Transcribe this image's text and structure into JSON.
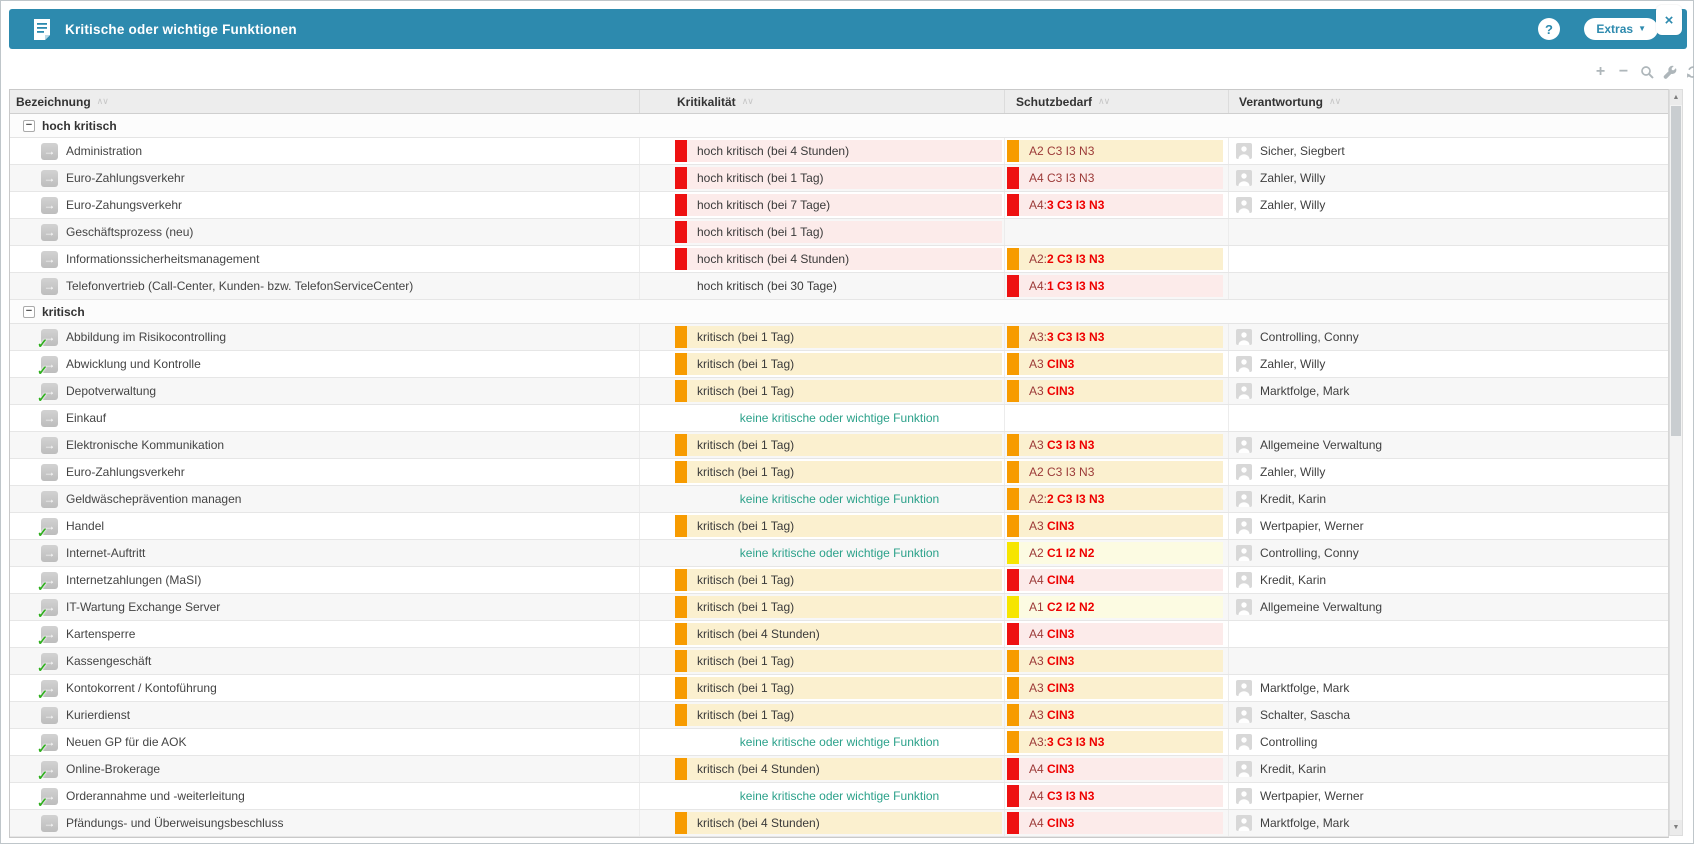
{
  "colors": {
    "accent_blue": "#2d8aae",
    "bar_red": "#ee1111",
    "bar_orange": "#f79b00",
    "bar_yellow": "#f6e500",
    "teal_text": "#2ba18a",
    "dark_red_text": "#9c3a38",
    "bold_red_text": "#ee0000"
  },
  "glyphs": {
    "arrow": "→",
    "check": "✓",
    "collapse": "−",
    "sort": "∧∨",
    "caret": "▼",
    "up": "▲",
    "down": "▼",
    "close": "×",
    "help": "?",
    "plus": "+",
    "minus": "−"
  },
  "header": {
    "title": "Kritische oder wichtige Funktionen",
    "help_label": "?",
    "extras_label": "Extras",
    "close_label": "×"
  },
  "table": {
    "sort_glyph": "∧∨",
    "columns": [
      {
        "label": "Bezeichnung"
      },
      {
        "label": "Kritikalität"
      },
      {
        "label": "Schutzbedarf"
      },
      {
        "label": "Verantwortung"
      }
    ],
    "keine_label": "keine kritische oder wichtige Funktion",
    "groups": [
      {
        "label": "hoch kritisch",
        "rows": [
          {
            "name": "Administration",
            "checked": false,
            "criticality": {
              "variant": "red",
              "label": "hoch kritisch (bei 4 Stunden)"
            },
            "protection": {
              "variant": "orange",
              "plain": "A2 C3 I3 N3",
              "bold": ""
            },
            "responsible": "Sicher, Siegbert"
          },
          {
            "name": "Euro-Zahlungsverkehr",
            "checked": false,
            "criticality": {
              "variant": "red",
              "label": "hoch kritisch (bei 1 Tag)"
            },
            "protection": {
              "variant": "red",
              "plain": "A4 C3 I3 N3",
              "bold": ""
            },
            "responsible": "Zahler, Willy"
          },
          {
            "name": "Euro-Zahungsverkehr",
            "checked": false,
            "criticality": {
              "variant": "red",
              "label": "hoch kritisch (bei 7 Tage)"
            },
            "protection": {
              "variant": "red",
              "plain": "A4:",
              "bold": "3 C3 I3 N3"
            },
            "responsible": "Zahler, Willy"
          },
          {
            "name": "Geschäftsprozess (neu)",
            "checked": false,
            "criticality": {
              "variant": "red",
              "label": "hoch kritisch (bei 1 Tag)"
            },
            "protection": {
              "variant": "none",
              "plain": "",
              "bold": ""
            },
            "responsible": ""
          },
          {
            "name": "Informationssicherheitsmanagement",
            "checked": false,
            "criticality": {
              "variant": "red",
              "label": "hoch kritisch (bei 4 Stunden)"
            },
            "protection": {
              "variant": "orange",
              "plain": "A2:",
              "bold": "2 C3 I3 N3"
            },
            "responsible": ""
          },
          {
            "name": "Telefonvertrieb (Call-Center, Kunden- bzw. TelefonServiceCenter)",
            "checked": false,
            "criticality": {
              "variant": "plain",
              "label": "hoch kritisch (bei 30 Tage)"
            },
            "protection": {
              "variant": "red",
              "plain": "A4:",
              "bold": "1 C3 I3 N3"
            },
            "responsible": ""
          }
        ]
      },
      {
        "label": "kritisch",
        "rows": [
          {
            "name": "Abbildung im Risikocontrolling",
            "checked": true,
            "criticality": {
              "variant": "orange",
              "label": "kritisch (bei 1 Tag)"
            },
            "protection": {
              "variant": "orange",
              "plain": "A3:",
              "bold": "3 C3 I3 N3"
            },
            "responsible": "Controlling, Conny"
          },
          {
            "name": "Abwicklung und Kontrolle",
            "checked": true,
            "criticality": {
              "variant": "orange",
              "label": "kritisch (bei 1 Tag)"
            },
            "protection": {
              "variant": "orange",
              "plain": "A3 ",
              "bold": "CIN3"
            },
            "responsible": "Zahler, Willy"
          },
          {
            "name": "Depotverwaltung",
            "checked": true,
            "criticality": {
              "variant": "orange",
              "label": "kritisch (bei 1 Tag)"
            },
            "protection": {
              "variant": "orange",
              "plain": "A3 ",
              "bold": "CIN3"
            },
            "responsible": "Marktfolge, Mark"
          },
          {
            "name": "Einkauf",
            "checked": false,
            "criticality": {
              "variant": "keine",
              "label": "keine kritische oder wichtige Funktion"
            },
            "protection": {
              "variant": "none",
              "plain": "",
              "bold": ""
            },
            "responsible": ""
          },
          {
            "name": "Elektronische Kommunikation",
            "checked": false,
            "criticality": {
              "variant": "orange",
              "label": "kritisch (bei 1 Tag)"
            },
            "protection": {
              "variant": "orange",
              "plain": "A3 ",
              "bold": "C3 I3 N3"
            },
            "responsible": "Allgemeine Verwaltung"
          },
          {
            "name": "Euro-Zahlungsverkehr",
            "checked": false,
            "criticality": {
              "variant": "orange",
              "label": "kritisch (bei 1 Tag)"
            },
            "protection": {
              "variant": "orange",
              "plain": "A2 C3 I3 N3",
              "bold": ""
            },
            "responsible": "Zahler, Willy"
          },
          {
            "name": "Geldwäscheprävention managen",
            "checked": false,
            "criticality": {
              "variant": "keine",
              "label": "keine kritische oder wichtige Funktion"
            },
            "protection": {
              "variant": "orange",
              "plain": "A2:",
              "bold": "2 C3 I3 N3"
            },
            "responsible": "Kredit, Karin"
          },
          {
            "name": "Handel",
            "checked": true,
            "criticality": {
              "variant": "orange",
              "label": "kritisch (bei 1 Tag)"
            },
            "protection": {
              "variant": "orange",
              "plain": "A3 ",
              "bold": "CIN3"
            },
            "responsible": "Wertpapier, Werner"
          },
          {
            "name": "Internet-Auftritt",
            "checked": false,
            "criticality": {
              "variant": "keine",
              "label": "keine kritische oder wichtige Funktion"
            },
            "protection": {
              "variant": "yellow",
              "plain": "A2 ",
              "bold": "C1 I2 N2"
            },
            "responsible": "Controlling, Conny"
          },
          {
            "name": "Internetzahlungen (MaSI)",
            "checked": true,
            "criticality": {
              "variant": "orange",
              "label": "kritisch (bei 1 Tag)"
            },
            "protection": {
              "variant": "red",
              "plain": "A4 ",
              "bold": "CIN4"
            },
            "responsible": "Kredit, Karin"
          },
          {
            "name": "IT-Wartung Exchange Server",
            "checked": true,
            "criticality": {
              "variant": "orange",
              "label": "kritisch (bei 1 Tag)"
            },
            "protection": {
              "variant": "yellow",
              "plain": "A1 ",
              "bold": "C2 I2 N2"
            },
            "responsible": "Allgemeine Verwaltung"
          },
          {
            "name": "Kartensperre",
            "checked": true,
            "criticality": {
              "variant": "orange",
              "label": "kritisch (bei 4 Stunden)"
            },
            "protection": {
              "variant": "red",
              "plain": "A4 ",
              "bold": "CIN3"
            },
            "responsible": ""
          },
          {
            "name": "Kassengeschäft",
            "checked": true,
            "criticality": {
              "variant": "orange",
              "label": "kritisch (bei 1 Tag)"
            },
            "protection": {
              "variant": "orange",
              "plain": "A3 ",
              "bold": "CIN3"
            },
            "responsible": ""
          },
          {
            "name": "Kontokorrent / Kontoführung",
            "checked": true,
            "criticality": {
              "variant": "orange",
              "label": "kritisch (bei 1 Tag)"
            },
            "protection": {
              "variant": "orange",
              "plain": "A3 ",
              "bold": "CIN3"
            },
            "responsible": "Marktfolge, Mark"
          },
          {
            "name": "Kurierdienst",
            "checked": false,
            "criticality": {
              "variant": "orange",
              "label": "kritisch (bei 1 Tag)"
            },
            "protection": {
              "variant": "orange",
              "plain": "A3 ",
              "bold": "CIN3"
            },
            "responsible": "Schalter, Sascha"
          },
          {
            "name": "Neuen GP für die AOK",
            "checked": true,
            "criticality": {
              "variant": "keine",
              "label": "keine kritische oder wichtige Funktion"
            },
            "protection": {
              "variant": "orange",
              "plain": "A3:",
              "bold": "3 C3 I3 N3"
            },
            "responsible": "Controlling"
          },
          {
            "name": "Online-Brokerage",
            "checked": true,
            "criticality": {
              "variant": "orange",
              "label": "kritisch (bei 4 Stunden)"
            },
            "protection": {
              "variant": "red",
              "plain": "A4 ",
              "bold": "CIN3"
            },
            "responsible": "Kredit, Karin"
          },
          {
            "name": "Orderannahme und -weiterleitung",
            "checked": true,
            "criticality": {
              "variant": "keine",
              "label": "keine kritische oder wichtige Funktion"
            },
            "protection": {
              "variant": "red",
              "plain": "A4 ",
              "bold": "C3 I3 N3"
            },
            "responsible": "Wertpapier, Werner"
          },
          {
            "name": "Pfändungs- und Überweisungsbeschluss",
            "checked": false,
            "criticality": {
              "variant": "orange",
              "label": "kritisch (bei 4 Stunden)"
            },
            "protection": {
              "variant": "red",
              "plain": "A4 ",
              "bold": "CIN3"
            },
            "responsible": "Marktfolge, Mark"
          }
        ]
      }
    ]
  }
}
